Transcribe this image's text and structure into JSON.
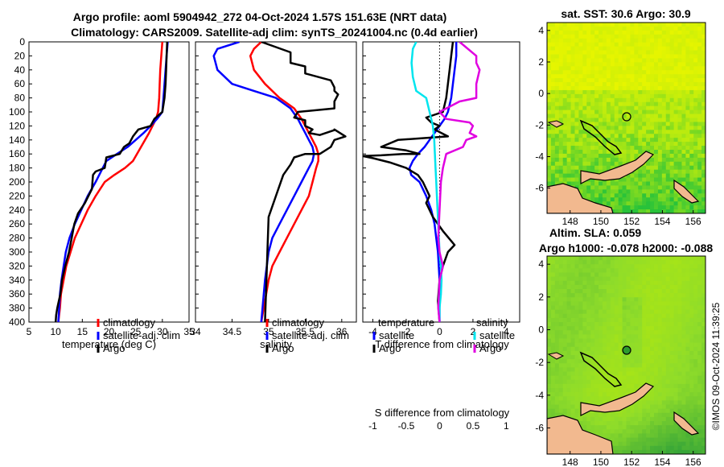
{
  "title_line1": "Argo profile: aoml 5904942_272 04-Oct-2024 1.57S 151.63E (NRT data)",
  "title_line2": "Climatology: CARS2009. Satellite-adj clim: synTS_20241004.nc (0.4d earlier)",
  "sst_title": "sat. SST: 30.6 Argo: 30.9",
  "sla_title1": "Altim. SLA: 0.059",
  "sla_title2": "Argo h1000: -0.078 h2000: -0.088",
  "timestamp": "©IMOS 09-Oct-2024 11:39:25",
  "colors": {
    "climatology": "#ff0000",
    "satellite": "#0000ff",
    "argo": "#000000",
    "cyan": "#00e5ee",
    "magenta": "#e000e0",
    "land": "#f2b98f"
  },
  "chart_data": [
    {
      "id": "temperature",
      "type": "line",
      "xlabel": "temperature (deg C)",
      "ylabel": "",
      "xlim": [
        5,
        35
      ],
      "ylim": [
        400,
        0
      ],
      "xticks": [
        5,
        10,
        15,
        20,
        25,
        30,
        35
      ],
      "yticks": [
        0,
        20,
        40,
        60,
        80,
        100,
        120,
        140,
        160,
        180,
        200,
        220,
        240,
        260,
        280,
        300,
        320,
        340,
        360,
        380,
        400
      ],
      "legend": [
        "climatology",
        "satellite-adj. clim",
        "Argo"
      ],
      "series": [
        {
          "name": "climatology",
          "color": "#ff0000",
          "x": [
            30.0,
            29.8,
            29.6,
            29.5,
            29.4,
            29.2,
            28.8,
            27.5,
            26.0,
            24.5,
            23.0,
            21.0,
            19.2,
            17.5,
            16.0,
            14.8,
            13.6,
            12.8,
            12.0,
            11.5,
            11.0,
            10.8,
            10.5
          ],
          "y": [
            0,
            20,
            40,
            60,
            80,
            100,
            110,
            130,
            150,
            170,
            180,
            190,
            200,
            220,
            240,
            260,
            280,
            300,
            320,
            340,
            360,
            380,
            400
          ]
        },
        {
          "name": "satellite-adj. clim",
          "color": "#0000ff",
          "x": [
            31.0,
            30.8,
            30.6,
            30.4,
            30.2,
            30.0,
            29.0,
            27.8,
            26.5,
            25.0,
            23.5,
            21.5,
            19.5,
            17.5,
            16.0,
            14.8,
            13.6,
            12.6,
            11.9,
            11.5,
            11.1,
            10.8,
            10.5
          ],
          "y": [
            0,
            20,
            40,
            60,
            80,
            100,
            110,
            120,
            130,
            140,
            150,
            160,
            170,
            200,
            220,
            240,
            260,
            280,
            300,
            320,
            340,
            360,
            400
          ]
        },
        {
          "name": "Argo",
          "color": "#000000",
          "x": [
            30.9,
            30.8,
            30.7,
            30.6,
            30.4,
            30.0,
            28.5,
            27.8,
            25.5,
            24.5,
            23.8,
            22.8,
            22.0,
            19.5,
            19.2,
            17.5,
            17.0,
            16.8,
            15.5,
            14.2,
            13.5,
            13.0,
            12.5,
            11.8,
            11.2,
            10.9,
            10.6,
            10.3,
            10.1,
            10.0
          ],
          "y": [
            0,
            20,
            40,
            60,
            80,
            100,
            110,
            120,
            125,
            135,
            145,
            150,
            160,
            165,
            180,
            185,
            190,
            210,
            230,
            245,
            260,
            280,
            300,
            320,
            340,
            360,
            370,
            380,
            390,
            400
          ]
        }
      ]
    },
    {
      "id": "salinity",
      "type": "line",
      "xlabel": "salinity",
      "xlim": [
        34,
        36.2
      ],
      "ylim": [
        400,
        0
      ],
      "xticks": [
        34,
        34.5,
        35,
        35.5,
        36
      ],
      "legend": [
        "climatology",
        "satellite-adj. clim",
        "Argo"
      ],
      "series": [
        {
          "name": "climatology",
          "color": "#ff0000",
          "x": [
            34.9,
            34.8,
            34.75,
            34.8,
            34.95,
            35.15,
            35.35,
            35.45,
            35.5,
            35.55,
            35.6,
            35.65,
            35.68,
            35.68,
            35.65,
            35.6,
            35.55,
            35.45,
            35.35,
            35.25,
            35.15,
            35.05,
            35.0,
            34.95,
            34.9
          ],
          "y": [
            0,
            10,
            20,
            40,
            60,
            80,
            95,
            110,
            120,
            130,
            140,
            150,
            160,
            170,
            180,
            200,
            220,
            240,
            260,
            280,
            300,
            320,
            340,
            370,
            400
          ]
        },
        {
          "name": "satellite-adj. clim",
          "color": "#0000ff",
          "x": [
            34.6,
            34.3,
            34.25,
            34.3,
            34.5,
            34.8,
            35.1,
            35.3,
            35.4,
            35.45,
            35.5,
            35.55,
            35.6,
            35.62,
            35.6,
            35.55,
            35.45,
            35.35,
            35.25,
            35.15,
            35.05,
            35.0,
            34.95,
            34.9
          ],
          "y": [
            0,
            10,
            20,
            40,
            60,
            70,
            80,
            95,
            110,
            120,
            130,
            140,
            150,
            160,
            170,
            180,
            200,
            220,
            240,
            260,
            280,
            300,
            340,
            400
          ]
        },
        {
          "name": "Argo",
          "color": "#000000",
          "x": [
            34.9,
            35.3,
            35.3,
            35.5,
            35.5,
            35.85,
            35.9,
            35.9,
            35.95,
            35.9,
            35.9,
            35.4,
            35.35,
            35.5,
            35.5,
            35.6,
            35.55,
            35.7,
            35.9,
            35.9,
            36.05,
            35.9,
            35.85,
            35.7,
            35.5,
            35.35,
            35.3,
            35.2,
            35.1,
            35.0,
            34.95
          ],
          "y": [
            0,
            15,
            30,
            35,
            45,
            55,
            65,
            70,
            75,
            85,
            95,
            100,
            108,
            112,
            120,
            125,
            130,
            133,
            126,
            125,
            135,
            140,
            150,
            160,
            160,
            165,
            175,
            190,
            220,
            250,
            400
          ]
        }
      ]
    },
    {
      "id": "difference",
      "type": "line",
      "xlabel": "T difference from climatology",
      "xlabel_top": "S difference from climatology",
      "xlim": [
        -4.6,
        4.8
      ],
      "ylim": [
        400,
        0
      ],
      "xticks": [
        -4,
        -2,
        0,
        2,
        4
      ],
      "xticks_top": [
        "-1",
        "-0.5",
        "0",
        "0.5",
        "1"
      ],
      "legend_temperature_title": "temperature",
      "legend_salinity_title": "salinity",
      "legend_temperature": [
        "satellite",
        "Argo"
      ],
      "legend_salinity": [
        "satellite",
        "Argo"
      ],
      "series": [
        {
          "name": "T satellite",
          "color": "#0000ff",
          "x": [
            1.0,
            1.0,
            0.9,
            0.8,
            0.7,
            0.5,
            0.3,
            0.0,
            -0.3,
            -0.6,
            -0.9,
            -1.3,
            -1.6,
            -1.8,
            -1.7,
            -1.2,
            -0.8,
            -0.5,
            -0.3,
            -0.2,
            -0.1,
            0.0,
            0.0
          ],
          "y": [
            0,
            20,
            40,
            60,
            80,
            100,
            110,
            120,
            130,
            140,
            150,
            160,
            170,
            180,
            190,
            200,
            220,
            240,
            260,
            280,
            300,
            340,
            400
          ]
        },
        {
          "name": "T Argo",
          "color": "#000000",
          "x": [
            0.8,
            0.7,
            0.6,
            0.5,
            0.4,
            0.2,
            -0.8,
            -0.5,
            0.0,
            -0.3,
            0.5,
            -2.5,
            -3.5,
            -2.0,
            -1.2,
            -2.2,
            -3.5,
            -4.6,
            -4.0,
            -3.0,
            -2.0,
            -1.3,
            -1.0,
            -0.6,
            -0.8,
            -0.4,
            0.2,
            0.9,
            0.5,
            0.2,
            0.0,
            -0.1,
            0.0
          ],
          "y": [
            0,
            20,
            40,
            60,
            80,
            100,
            108,
            115,
            120,
            125,
            135,
            140,
            150,
            155,
            160,
            160,
            162,
            163,
            166,
            172,
            180,
            190,
            200,
            220,
            230,
            250,
            270,
            290,
            300,
            320,
            340,
            370,
            400
          ]
        },
        {
          "name": "S satellite",
          "color": "#00e5ee",
          "x": [
            -0.35,
            -0.4,
            -0.42,
            -0.4,
            -0.35,
            -0.2,
            -0.15,
            -0.1,
            -0.08,
            -0.07,
            -0.06,
            -0.05,
            -0.04,
            -0.03,
            -0.02,
            -0.01,
            0.0,
            0.02,
            0.03,
            0.02,
            0.0,
            0.0
          ],
          "y": [
            0,
            10,
            30,
            50,
            70,
            80,
            100,
            120,
            140,
            160,
            180,
            200,
            220,
            240,
            260,
            280,
            300,
            320,
            340,
            360,
            380,
            400
          ]
        },
        {
          "name": "S Argo",
          "color": "#e000e0",
          "x": [
            0.3,
            0.55,
            0.55,
            0.6,
            0.55,
            0.55,
            0.3,
            0.0,
            0.1,
            0.45,
            0.5,
            0.45,
            0.55,
            0.4,
            0.35,
            0.1,
            0.05,
            0.02,
            0.0,
            -0.02,
            0.0,
            0.05,
            0.0,
            -0.02,
            0.0
          ],
          "y": [
            0,
            20,
            30,
            40,
            60,
            80,
            85,
            100,
            110,
            115,
            120,
            130,
            135,
            140,
            150,
            160,
            180,
            200,
            240,
            280,
            300,
            320,
            340,
            380,
            400
          ]
        }
      ]
    },
    {
      "id": "sst_map",
      "type": "heatmap",
      "title": "sat. SST: 30.6 Argo: 30.9",
      "xlim": [
        146.5,
        156.8
      ],
      "ylim": [
        -7.6,
        4.5
      ],
      "xticks": [
        148,
        150,
        152,
        154,
        156
      ],
      "yticks": [
        4,
        2,
        0,
        -2,
        -4,
        -6
      ],
      "profile_location": {
        "lon": 151.63,
        "lat": -1.57
      }
    },
    {
      "id": "sla_map",
      "type": "heatmap",
      "title": "Altim. SLA: 0.059",
      "xlim": [
        146.5,
        156.8
      ],
      "ylim": [
        -7.6,
        4.5
      ],
      "xticks": [
        148,
        150,
        152,
        154,
        156
      ],
      "yticks": [
        4,
        2,
        0,
        -2,
        -4,
        -6
      ],
      "profile_location": {
        "lon": 151.63,
        "lat": -1.57
      }
    }
  ]
}
